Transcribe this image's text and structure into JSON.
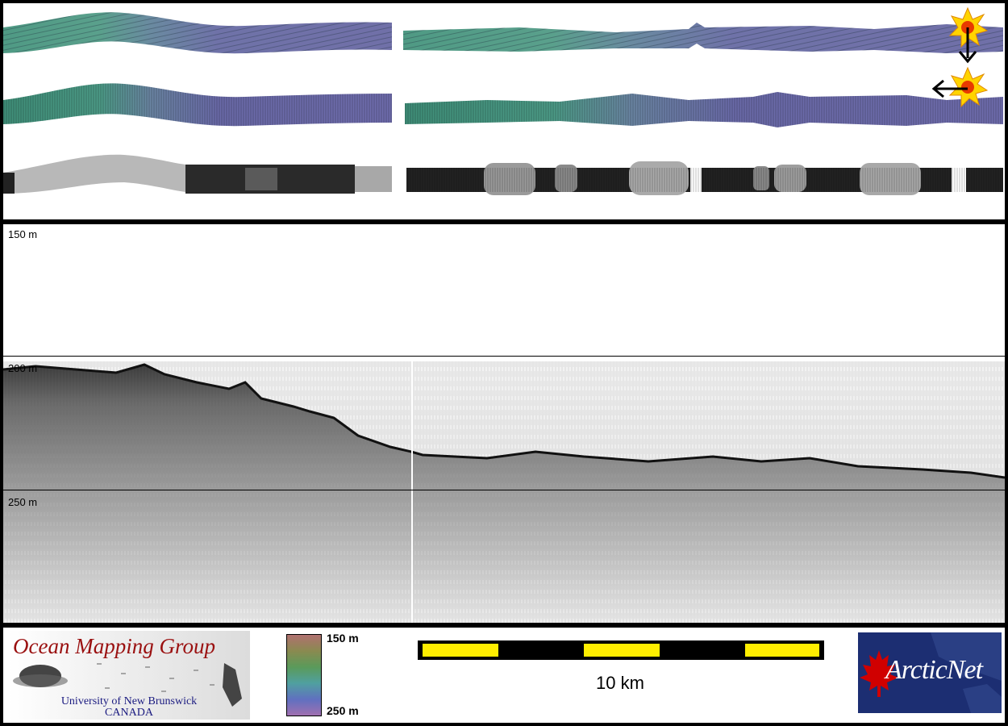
{
  "profile": {
    "depth_labels": [
      "150 m",
      "200 m",
      "250 m"
    ]
  },
  "colorbar": {
    "top_label": "150 m",
    "bottom_label": "250 m"
  },
  "scale_bar": {
    "label": "10 km"
  },
  "omg_logo": {
    "title": "Ocean Mapping Group",
    "line1": "University of New Brunswick",
    "line2": "CANADA"
  },
  "arcticnet_logo": {
    "text": "ArcticNet"
  },
  "colors": {
    "yellow": "#ffee00",
    "navy": "#1a2a6a",
    "red": "#cc0000"
  }
}
